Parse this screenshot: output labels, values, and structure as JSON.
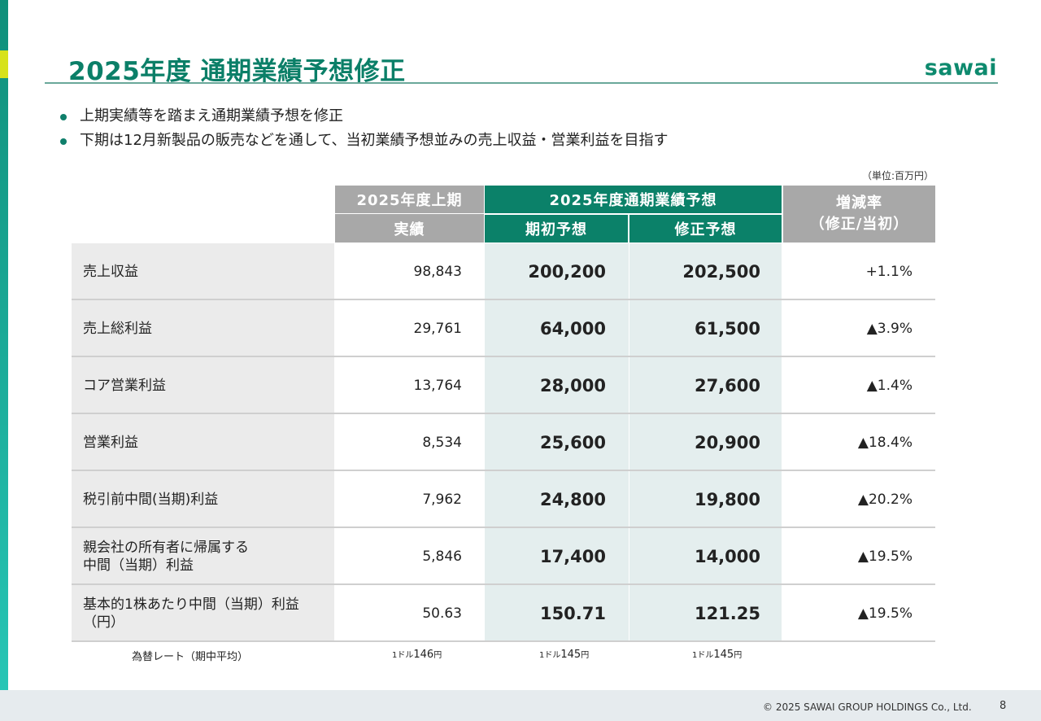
{
  "title": "2025年度 通期業績予想修正",
  "logo": "sawai",
  "bullets": [
    "上期実績等を踏まえ通期業績予想を修正",
    "下期は12月新製品の販売などを通して、当初業績予想並みの売上収益・営業利益を目指す"
  ],
  "unit": "（単位:百万円）",
  "header": {
    "h1_group": "2025年度上期",
    "h1_sub": "実績",
    "forecast_group": "2025年度通期業績予想",
    "initial": "期初予想",
    "revised": "修正予想",
    "rate_line1": "増減率",
    "rate_line2": "（修正/当初）"
  },
  "rows": [
    {
      "label": "売上収益",
      "actual": "98,843",
      "initial": "200,200",
      "revised": "202,500",
      "rate": "+1.1%"
    },
    {
      "label": "売上総利益",
      "actual": "29,761",
      "initial": "64,000",
      "revised": "61,500",
      "rate": "▲3.9%"
    },
    {
      "label": "コア営業利益",
      "actual": "13,764",
      "initial": "28,000",
      "revised": "27,600",
      "rate": "▲1.4%"
    },
    {
      "label": "営業利益",
      "actual": "8,534",
      "initial": "25,600",
      "revised": "20,900",
      "rate": "▲18.4%"
    },
    {
      "label": "税引前中間(当期)利益",
      "actual": "7,962",
      "initial": "24,800",
      "revised": "19,800",
      "rate": "▲20.2%"
    },
    {
      "label": "親会社の所有者に帰属する\n中間（当期）利益",
      "actual": "5,846",
      "initial": "17,400",
      "revised": "14,000",
      "rate": "▲19.5%"
    },
    {
      "label": "基本的1株あたり中間（当期）利益\n（円）",
      "actual": "50.63",
      "initial": "150.71",
      "revised": "121.25",
      "rate": "▲19.5%"
    }
  ],
  "fx": {
    "label": "為替レート（期中平均）",
    "actual_prefix": "1ドル",
    "actual_value": "146",
    "actual_suffix": "円",
    "initial_prefix": "1ドル",
    "initial_value": "145",
    "initial_suffix": "円",
    "revised_prefix": "1ドル",
    "revised_value": "145",
    "revised_suffix": "円"
  },
  "footer": {
    "copyright": "© 2025 SAWAI GROUP HOLDINGS Co., Ltd.",
    "page": "8"
  }
}
